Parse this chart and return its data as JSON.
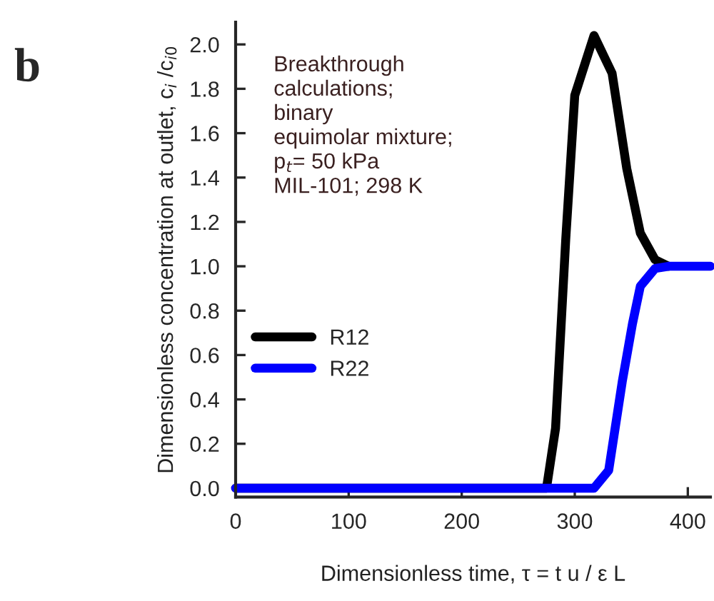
{
  "chart_data": {
    "type": "line",
    "xlabel": "Dimensionless time, τ = t u / ε L",
    "ylabel": "Dimensionless concentration at outlet, c$_{i}$ /c$_{i0}$",
    "annotations": [
      "b",
      "Breakthrough\ncalculations;\nbinary\nequimolar mixture;\np$_{t}$= 50 kPa\nMIL-101; 298 K"
    ],
    "series": [
      {
        "name": "R12",
        "color": "#000000",
        "x": [
          0,
          275,
          283,
          292,
          300,
          317,
          333,
          346,
          358,
          371,
          383
        ],
        "values": [
          0,
          0,
          0.27,
          1.12,
          1.77,
          2.04,
          1.87,
          1.44,
          1.15,
          1.03,
          1.0
        ]
      },
      {
        "name": "R22",
        "color": "#0000ff",
        "x": [
          0,
          317,
          330,
          342,
          351,
          358,
          371,
          383,
          420
        ],
        "values": [
          0,
          0,
          0.08,
          0.48,
          0.74,
          0.91,
          0.99,
          1.0,
          1.0
        ]
      }
    ],
    "xlim": [
      0,
      420
    ],
    "ylim": [
      -0.04,
      2.1
    ],
    "xticks": [
      0,
      100,
      200,
      300,
      400
    ],
    "yticks": [
      {
        "value": 0,
        "label": "0.0"
      },
      {
        "value": 0.2,
        "label": "0.2"
      },
      {
        "value": 0.4,
        "label": "0.4"
      },
      {
        "value": 0.6,
        "label": "0.6"
      },
      {
        "value": 0.8,
        "label": "0.8"
      },
      {
        "value": 1.0,
        "label": "1.0"
      },
      {
        "value": 1.2,
        "label": "1.2"
      },
      {
        "value": 1.4,
        "label": "1.4"
      },
      {
        "value": 1.6,
        "label": "1.6"
      },
      {
        "value": 1.8,
        "label": "1.8"
      },
      {
        "value": 2.0,
        "label": "2.0"
      }
    ],
    "legend": "center left",
    "marker": "none",
    "line_style": "solid",
    "grid": false
  }
}
